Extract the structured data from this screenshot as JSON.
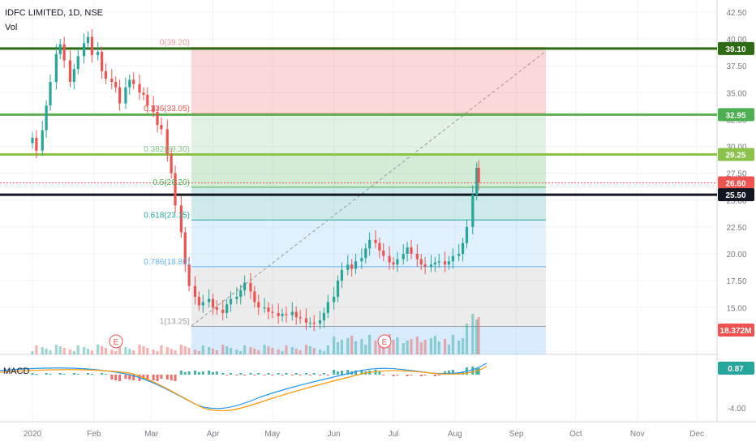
{
  "header": {
    "symbol_title": "IDFC LIMITED, 1D, NSE",
    "volume_label": "Vol"
  },
  "macd": {
    "label": "MACD",
    "value_tag": "0.87",
    "axis_label": "-4.00"
  },
  "chart_data": {
    "type": "candlestick",
    "title": "IDFC LIMITED, 1D, NSE",
    "price_axis": {
      "ticks": [
        "42.50",
        "40.00",
        "37.50",
        "35.00",
        "32.50",
        "30.00",
        "27.50",
        "25.00",
        "22.50",
        "20.00",
        "17.50",
        "15.00"
      ],
      "range": [
        12.0,
        43.0
      ]
    },
    "time_axis": {
      "labels": [
        "2020",
        "Feb",
        "Mar",
        "Apr",
        "May",
        "Jun",
        "Jul",
        "Aug",
        "Sep",
        "Oct",
        "Nov",
        "Dec"
      ]
    },
    "price_tags": [
      {
        "value": "39.10",
        "color": "#2e6b14"
      },
      {
        "value": "32.95",
        "color": "#4caf50"
      },
      {
        "value": "29.25",
        "color": "#8bc34a"
      },
      {
        "value": "26.60",
        "color": "#ef5350"
      },
      {
        "value": "25.50",
        "color": "#131722"
      },
      {
        "value": "18.372M",
        "color": "#ef5350"
      }
    ],
    "horizontal_lines": [
      {
        "price": 39.1,
        "color": "#2e6b14",
        "width": 3
      },
      {
        "price": 32.95,
        "color": "#5cae4f",
        "width": 3
      },
      {
        "price": 29.25,
        "color": "#8bc34a",
        "width": 3
      },
      {
        "price": 25.5,
        "color": "#131722",
        "width": 3
      },
      {
        "price": 26.6,
        "color": "#ef5350",
        "width": 1,
        "dotted": true
      }
    ],
    "fib_levels": [
      {
        "label": "0(39.20)",
        "price": 39.2,
        "color": "#ef9a9a"
      },
      {
        "label": "0.236(33.05)",
        "price": 33.05,
        "color": "#ef5350"
      },
      {
        "label": "0.382(29.30)",
        "price": 29.3,
        "color": "#81c784"
      },
      {
        "label": "0.5(26.20)",
        "price": 26.2,
        "color": "#4caf50"
      },
      {
        "label": "0.618(23.15)",
        "price": 23.15,
        "color": "#26a69a"
      },
      {
        "label": "0.786(18.80)",
        "price": 18.8,
        "color": "#64b5f6"
      },
      {
        "label": "1(13.25)",
        "price": 13.25,
        "color": "#9e9e9e"
      }
    ],
    "earnings_markers": [
      "E",
      "E"
    ],
    "series": [
      {
        "name": "price",
        "points": [
          [
            "2020-01-01",
            30.8
          ],
          [
            "2020-01-03",
            29.6
          ],
          [
            "2020-01-06",
            31.5
          ],
          [
            "2020-01-08",
            33.8
          ],
          [
            "2020-01-10",
            36.0
          ],
          [
            "2020-01-13",
            38.6
          ],
          [
            "2020-01-15",
            39.5
          ],
          [
            "2020-01-17",
            38.0
          ],
          [
            "2020-01-20",
            36.0
          ],
          [
            "2020-01-22",
            37.2
          ],
          [
            "2020-01-24",
            38.4
          ],
          [
            "2020-01-27",
            39.6
          ],
          [
            "2020-01-29",
            40.2
          ],
          [
            "2020-01-31",
            38.5
          ],
          [
            "2020-02-03",
            38.8
          ],
          [
            "2020-02-05",
            37.0
          ],
          [
            "2020-02-07",
            36.3
          ],
          [
            "2020-02-10",
            36.0
          ],
          [
            "2020-02-12",
            35.5
          ],
          [
            "2020-02-14",
            34.0
          ],
          [
            "2020-02-17",
            35.5
          ],
          [
            "2020-02-19",
            36.2
          ],
          [
            "2020-02-21",
            35.8
          ],
          [
            "2020-02-24",
            35.0
          ],
          [
            "2020-02-26",
            34.8
          ],
          [
            "2020-02-28",
            33.8
          ],
          [
            "2020-03-02",
            33.2
          ],
          [
            "2020-03-04",
            32.0
          ],
          [
            "2020-03-06",
            31.6
          ],
          [
            "2020-03-09",
            29.3
          ],
          [
            "2020-03-11",
            27.5
          ],
          [
            "2020-03-13",
            24.5
          ],
          [
            "2020-03-16",
            22.0
          ],
          [
            "2020-03-18",
            19.0
          ],
          [
            "2020-03-20",
            17.0
          ],
          [
            "2020-03-23",
            16.0
          ],
          [
            "2020-03-25",
            15.2
          ],
          [
            "2020-03-27",
            15.5
          ],
          [
            "2020-03-30",
            15.8
          ],
          [
            "2020-04-01",
            15.0
          ],
          [
            "2020-04-03",
            14.8
          ],
          [
            "2020-04-06",
            14.5
          ],
          [
            "2020-04-08",
            15.3
          ],
          [
            "2020-04-10",
            15.8
          ],
          [
            "2020-04-13",
            16.0
          ],
          [
            "2020-04-15",
            16.6
          ],
          [
            "2020-04-17",
            17.3
          ],
          [
            "2020-04-20",
            16.5
          ],
          [
            "2020-04-22",
            15.5
          ],
          [
            "2020-04-24",
            15.0
          ],
          [
            "2020-04-27",
            15.0
          ],
          [
            "2020-04-29",
            14.6
          ],
          [
            "2020-05-01",
            14.5
          ],
          [
            "2020-05-04",
            14.2
          ],
          [
            "2020-05-06",
            14.4
          ],
          [
            "2020-05-08",
            14.3
          ],
          [
            "2020-05-11",
            14.6
          ],
          [
            "2020-05-13",
            14.1
          ],
          [
            "2020-05-15",
            14.0
          ],
          [
            "2020-05-18",
            13.6
          ],
          [
            "2020-05-20",
            13.6
          ],
          [
            "2020-05-22",
            13.5
          ],
          [
            "2020-05-25",
            13.8
          ],
          [
            "2020-05-27",
            14.5
          ],
          [
            "2020-05-29",
            15.5
          ],
          [
            "2020-06-01",
            16.0
          ],
          [
            "2020-06-03",
            17.5
          ],
          [
            "2020-06-05",
            18.5
          ],
          [
            "2020-06-08",
            19.0
          ],
          [
            "2020-06-10",
            18.6
          ],
          [
            "2020-06-12",
            19.3
          ],
          [
            "2020-06-15",
            19.6
          ],
          [
            "2020-06-17",
            20.5
          ],
          [
            "2020-06-19",
            21.3
          ],
          [
            "2020-06-22",
            21.0
          ],
          [
            "2020-06-24",
            20.3
          ],
          [
            "2020-06-26",
            19.8
          ],
          [
            "2020-06-29",
            19.2
          ],
          [
            "2020-07-01",
            19.0
          ],
          [
            "2020-07-03",
            19.5
          ],
          [
            "2020-07-06",
            20.0
          ],
          [
            "2020-07-08",
            20.6
          ],
          [
            "2020-07-10",
            20.0
          ],
          [
            "2020-07-13",
            19.5
          ],
          [
            "2020-07-15",
            19.0
          ],
          [
            "2020-07-17",
            18.8
          ],
          [
            "2020-07-20",
            19.0
          ],
          [
            "2020-07-22",
            19.2
          ],
          [
            "2020-07-24",
            19.3
          ],
          [
            "2020-07-27",
            19.0
          ],
          [
            "2020-07-29",
            19.3
          ],
          [
            "2020-07-31",
            19.8
          ],
          [
            "2020-08-03",
            20.0
          ],
          [
            "2020-08-05",
            21.0
          ],
          [
            "2020-08-07",
            22.5
          ],
          [
            "2020-08-10",
            25.5
          ],
          [
            "2020-08-12",
            28.0
          ],
          [
            "2020-08-13",
            26.6
          ]
        ]
      }
    ]
  }
}
